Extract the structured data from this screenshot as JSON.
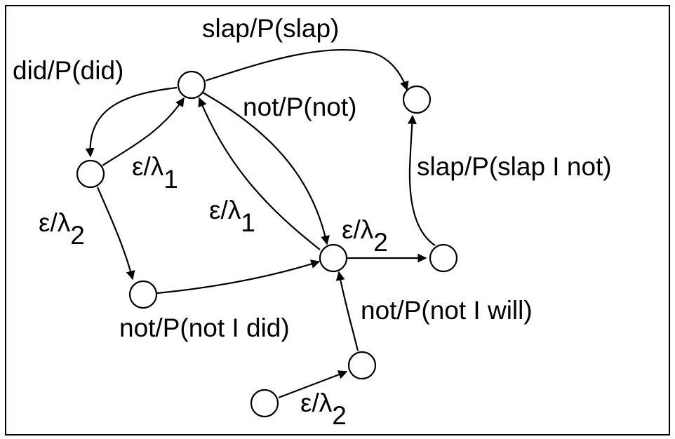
{
  "nodes": [
    {
      "id": "n_top"
    },
    {
      "id": "n_topright"
    },
    {
      "id": "n_left"
    },
    {
      "id": "n_bottomleft"
    },
    {
      "id": "n_center"
    },
    {
      "id": "n_right"
    },
    {
      "id": "n_lowmid"
    },
    {
      "id": "n_bottom"
    }
  ],
  "edges": [
    {
      "id": "e_slap",
      "from": "n_top",
      "to": "n_topright",
      "label": "slap/P(slap)"
    },
    {
      "id": "e_did",
      "from": "n_top",
      "to": "n_left",
      "label": "did/P(did)"
    },
    {
      "id": "e_left_backoff",
      "from": "n_left",
      "to": "n_top",
      "label": "ε/λ",
      "sub": "1"
    },
    {
      "id": "e_top_not",
      "from": "n_top",
      "to": "n_center",
      "label": "not/P(not)"
    },
    {
      "id": "e_center_backoff1",
      "from": "n_center",
      "to": "n_top",
      "label": "ε/λ",
      "sub": "1"
    },
    {
      "id": "e_left_backoff2",
      "from": "n_left",
      "to": "n_bottomleft",
      "label": "ε/λ",
      "sub": "2"
    },
    {
      "id": "e_not_did",
      "from": "n_bottomleft",
      "to": "n_center",
      "label": "not/P(not I did)"
    },
    {
      "id": "e_center_backoff2",
      "from": "n_center",
      "to": "n_right",
      "label": "ε/λ",
      "sub": "2"
    },
    {
      "id": "e_slap_not",
      "from": "n_right",
      "to": "n_topright",
      "label": "slap/P(slap I not)"
    },
    {
      "id": "e_not_will",
      "from": "n_lowmid",
      "to": "n_center",
      "label": "not/P(not I will)"
    },
    {
      "id": "e_bottom_backoff2",
      "from": "n_bottom",
      "to": "n_lowmid",
      "label": "ε/λ",
      "sub": "2"
    }
  ]
}
